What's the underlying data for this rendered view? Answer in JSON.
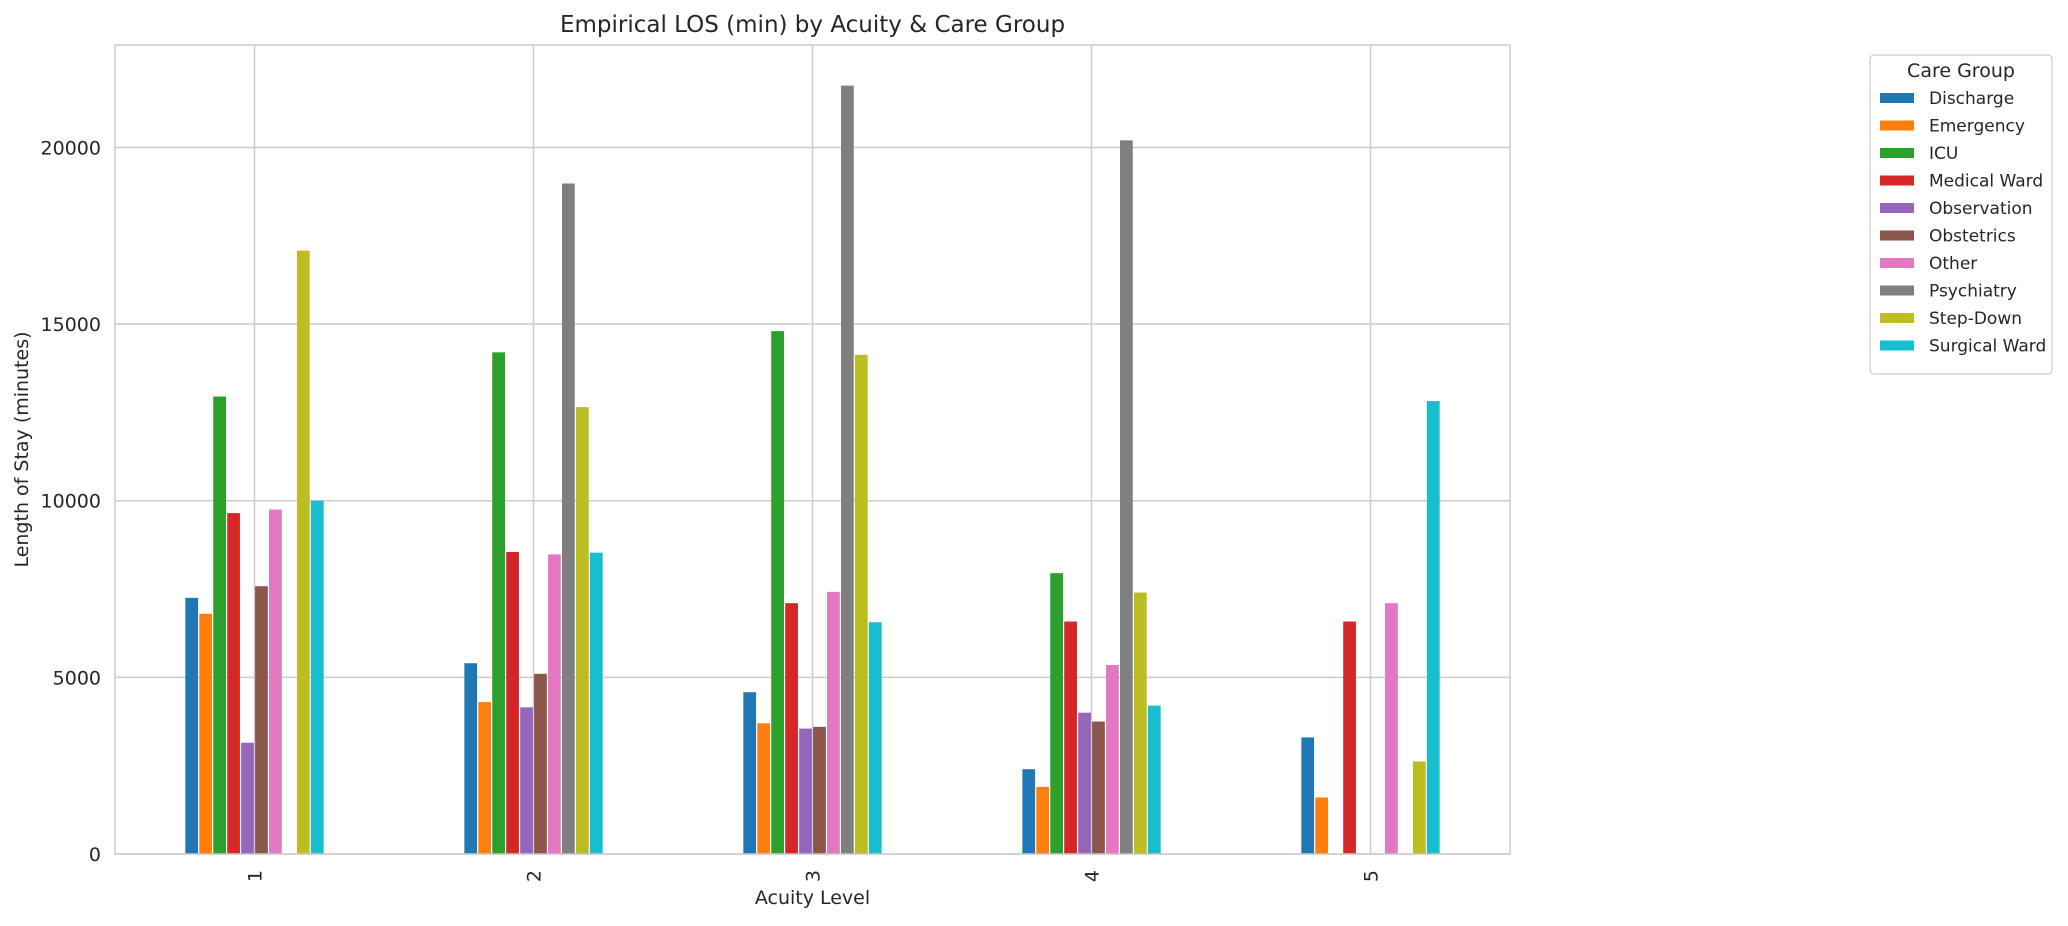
{
  "chart_data": {
    "type": "bar",
    "title": "Empirical LOS (min) by Acuity & Care Group",
    "xlabel": "Acuity Level",
    "ylabel": "Length of Stay (minutes)",
    "categories": [
      "1",
      "2",
      "3",
      "4",
      "5"
    ],
    "ylim": [
      0,
      22900
    ],
    "yticks": [
      0,
      5000,
      10000,
      15000,
      20000
    ],
    "grid": true,
    "legend": {
      "title": "Care Group",
      "placement": "outside-top-right"
    },
    "series": [
      {
        "name": "Discharge",
        "color": "#1f77b4",
        "values": [
          7250,
          5400,
          4580,
          2400,
          3300
        ]
      },
      {
        "name": "Emergency",
        "color": "#ff7f0e",
        "values": [
          6800,
          4300,
          3700,
          1900,
          1600
        ]
      },
      {
        "name": "ICU",
        "color": "#2ca02c",
        "values": [
          12950,
          14200,
          14800,
          7950,
          null
        ]
      },
      {
        "name": "Medical Ward",
        "color": "#d62728",
        "values": [
          9650,
          8550,
          7100,
          6580,
          6580
        ]
      },
      {
        "name": "Observation",
        "color": "#9467bd",
        "values": [
          3150,
          4150,
          3550,
          4000,
          null
        ]
      },
      {
        "name": "Obstetrics",
        "color": "#8c564b",
        "values": [
          7580,
          5100,
          3600,
          3750,
          null
        ]
      },
      {
        "name": "Other",
        "color": "#e377c2",
        "values": [
          9750,
          8480,
          7420,
          5350,
          7100
        ]
      },
      {
        "name": "Psychiatry",
        "color": "#7f7f7f",
        "values": [
          null,
          18980,
          21750,
          20200,
          null
        ]
      },
      {
        "name": "Step-Down",
        "color": "#bcbd22",
        "values": [
          17080,
          12650,
          14130,
          7400,
          2620
        ]
      },
      {
        "name": "Surgical Ward",
        "color": "#17becf",
        "values": [
          10000,
          8530,
          6560,
          4200,
          12820
        ]
      }
    ]
  }
}
